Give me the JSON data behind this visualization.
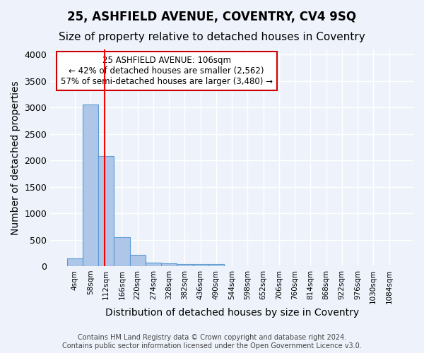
{
  "title1": "25, ASHFIELD AVENUE, COVENTRY, CV4 9SQ",
  "title2": "Size of property relative to detached houses in Coventry",
  "xlabel": "Distribution of detached houses by size in Coventry",
  "ylabel": "Number of detached properties",
  "bin_labels": [
    "4sqm",
    "58sqm",
    "112sqm",
    "166sqm",
    "220sqm",
    "274sqm",
    "328sqm",
    "382sqm",
    "436sqm",
    "490sqm",
    "544sqm",
    "598sqm",
    "652sqm",
    "706sqm",
    "760sqm",
    "814sqm",
    "868sqm",
    "922sqm",
    "976sqm",
    "1030sqm",
    "1084sqm"
  ],
  "bar_heights": [
    140,
    3060,
    2080,
    545,
    210,
    70,
    55,
    40,
    40,
    40,
    0,
    0,
    0,
    0,
    0,
    0,
    0,
    0,
    0,
    0,
    0
  ],
  "bar_color": "#aec6e8",
  "bar_edge_color": "#5b9bd5",
  "background_color": "#eef3fb",
  "grid_color": "#ffffff",
  "annotation_text": "25 ASHFIELD AVENUE: 106sqm\n← 42% of detached houses are smaller (2,562)\n57% of semi-detached houses are larger (3,480) →",
  "annotation_box_color": "#ffffff",
  "annotation_box_edge_color": "#cc0000",
  "ylim": [
    0,
    4100
  ],
  "yticks": [
    0,
    500,
    1000,
    1500,
    2000,
    2500,
    3000,
    3500,
    4000
  ],
  "footer_text": "Contains HM Land Registry data © Crown copyright and database right 2024.\nContains public sector information licensed under the Open Government Licence v3.0.",
  "title1_fontsize": 12,
  "title2_fontsize": 11,
  "xlabel_fontsize": 10,
  "ylabel_fontsize": 10
}
